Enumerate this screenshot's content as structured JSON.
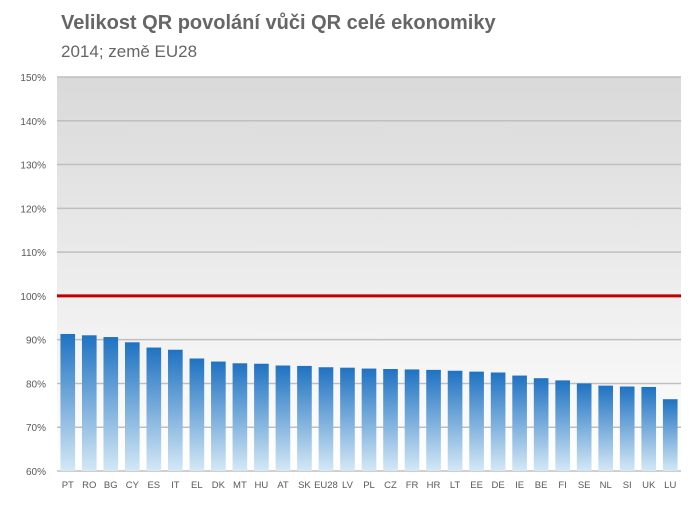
{
  "chart_data": {
    "type": "bar",
    "title": "Velikost QR povolání vůči QR celé ekonomiky",
    "subtitle": "2014; země EU28",
    "categories": [
      "PT",
      "RO",
      "BG",
      "CY",
      "ES",
      "IT",
      "EL",
      "DK",
      "MT",
      "HU",
      "AT",
      "SK",
      "EU28",
      "LV",
      "PL",
      "CZ",
      "FR",
      "HR",
      "LT",
      "EE",
      "DE",
      "IE",
      "BE",
      "FI",
      "SE",
      "NL",
      "SI",
      "UK",
      "LU"
    ],
    "values": [
      91.3,
      91.0,
      90.6,
      89.4,
      88.2,
      87.7,
      85.7,
      85.0,
      84.6,
      84.5,
      84.1,
      84.0,
      83.7,
      83.6,
      83.4,
      83.3,
      83.2,
      83.1,
      82.9,
      82.7,
      82.5,
      81.8,
      81.2,
      80.7,
      80.0,
      79.5,
      79.3,
      79.2,
      76.4
    ],
    "y_ticks": [
      "150%",
      "140%",
      "130%",
      "120%",
      "110%",
      "100%",
      "90%",
      "80%",
      "70%",
      "60%"
    ],
    "ylim": [
      60,
      150
    ],
    "reference_line": 100,
    "grid": true,
    "colors": {
      "bar_top": "#1f72c2",
      "bar_bottom": "#d4e8f6",
      "reference_line": "#c00000",
      "grid": "#bfbfbf",
      "plot_bg_top": "#d9d9d9",
      "plot_bg_bottom": "#ffffff"
    }
  }
}
